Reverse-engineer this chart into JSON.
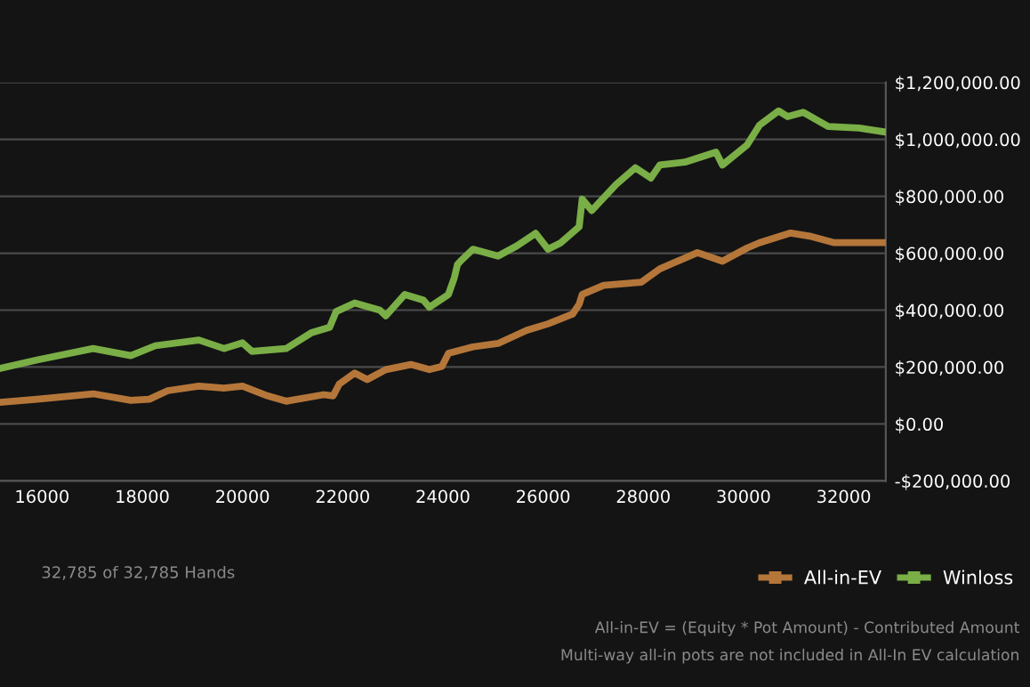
{
  "chart_data": {
    "type": "line",
    "xlim": [
      15160,
      32840
    ],
    "xticks": [
      16000,
      18000,
      20000,
      22000,
      24000,
      26000,
      28000,
      30000,
      32000
    ],
    "ylim": [
      -200000,
      1200000
    ],
    "yticks": [
      {
        "value": -200000,
        "label": "-$200,000.00"
      },
      {
        "value": 0,
        "label": "$0.00"
      },
      {
        "value": 200000,
        "label": "$200,000.00"
      },
      {
        "value": 400000,
        "label": "$400,000.00"
      },
      {
        "value": 600000,
        "label": "$600,000.00"
      },
      {
        "value": 800000,
        "label": "$800,000.00"
      },
      {
        "value": 1000000,
        "label": "$1,000,000.00"
      },
      {
        "value": 1200000,
        "label": "$1,200,000.00"
      }
    ],
    "grid": "y",
    "legend": "bottom right",
    "marker": "none",
    "line_style": "solid",
    "annotations": [
      "32,785 of 32,785 Hands",
      "All-in-EV = (Equity * Pot Amount) - Contributed Amount",
      "Multi-way all-in pots are not included in All-In EV calculation"
    ],
    "series": [
      {
        "name": "All-in-EV",
        "color": "#b5763a",
        "x": [
          15160,
          15900,
          17020,
          17770,
          18140,
          18510,
          19130,
          19630,
          20000,
          20500,
          20870,
          21620,
          21810,
          21930,
          22240,
          22490,
          22860,
          23360,
          23730,
          23980,
          24110,
          24600,
          25100,
          25670,
          26100,
          26590,
          26720,
          26780,
          27210,
          27960,
          28330,
          29080,
          29580,
          30070,
          30320,
          30940,
          31320,
          31810,
          32785
        ],
        "values": [
          76000,
          87000,
          106000,
          83000,
          87000,
          117000,
          133000,
          126000,
          133000,
          99000,
          80000,
          103000,
          99000,
          140000,
          179000,
          156000,
          191000,
          209000,
          191000,
          202000,
          248000,
          271000,
          283000,
          329000,
          352000,
          386000,
          421000,
          455000,
          487000,
          498000,
          545000,
          602000,
          572000,
          618000,
          637000,
          671000,
          660000,
          637000,
          637000
        ]
      },
      {
        "name": "Winloss",
        "color": "#7aae46",
        "x": [
          15160,
          15900,
          17020,
          17770,
          18260,
          19130,
          19630,
          20000,
          20190,
          20870,
          21370,
          21740,
          21870,
          22240,
          22740,
          22860,
          23240,
          23610,
          23730,
          24110,
          24230,
          24290,
          24350,
          24600,
          25100,
          25470,
          25850,
          26100,
          26340,
          26720,
          26780,
          26970,
          27460,
          27840,
          28150,
          28330,
          28830,
          29450,
          29580,
          30070,
          30320,
          30700,
          30880,
          31190,
          31690,
          32310,
          32785
        ],
        "values": [
          195000,
          225000,
          265000,
          240000,
          275000,
          295000,
          265000,
          285000,
          255000,
          265000,
          320000,
          340000,
          395000,
          425000,
          400000,
          380000,
          455000,
          435000,
          410000,
          455000,
          515000,
          560000,
          572000,
          614000,
          590000,
          625000,
          670000,
          614000,
          635000,
          693000,
          790000,
          750000,
          842000,
          900000,
          864000,
          910000,
          920000,
          955000,
          910000,
          980000,
          1050000,
          1100000,
          1080000,
          1095000,
          1045000,
          1040000,
          1027000
        ]
      }
    ]
  }
}
